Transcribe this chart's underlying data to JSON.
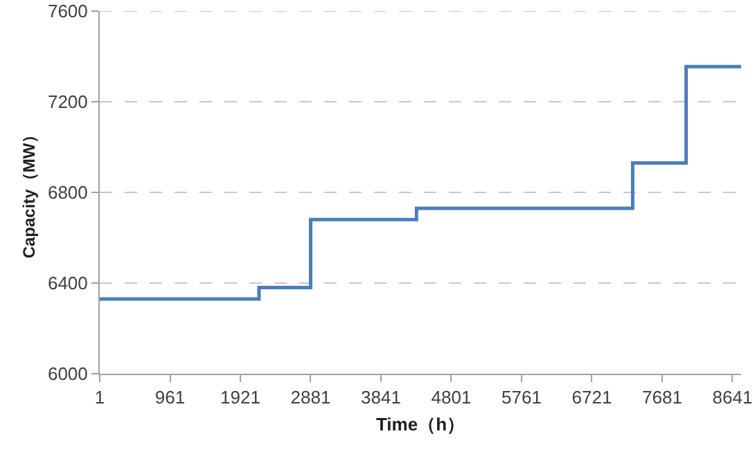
{
  "chart_data": {
    "type": "step",
    "xlabel": "Time（h）",
    "ylabel": "Capacity（MW）",
    "x": [
      1,
      2176,
      2881,
      4327,
      7279,
      8009,
      8760
    ],
    "series": [
      {
        "color": "#4a7ebb",
        "values": [
          6330,
          6380,
          6680,
          6730,
          6930,
          7355,
          7355
        ]
      }
    ],
    "xlim": [
      1,
      8760
    ],
    "xticks": [
      1,
      961,
      1921,
      2881,
      3841,
      4801,
      5761,
      6721,
      7681,
      8641
    ],
    "ylim": [
      6000,
      7600
    ],
    "yticks": [
      6000,
      6400,
      6800,
      7200,
      7600
    ],
    "grid": "y",
    "marker": "none",
    "line_style": "solid"
  }
}
